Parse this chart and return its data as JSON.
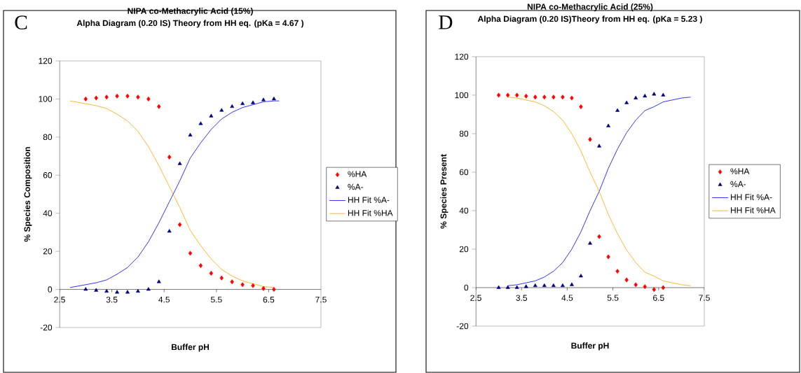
{
  "chart_data": [
    {
      "type": "scatter",
      "title": "NIPA co-Methacrylic Acid (15%)",
      "subtitle": "Alpha Diagram (0.20 IS) Theory from HH eq. (pKa = 4.67 )",
      "xlabel": "Buffer pH",
      "ylabel": "% Species Composition",
      "annotations": [
        "C"
      ],
      "xlim": [
        2.5,
        7.5
      ],
      "ylim": [
        -20,
        120
      ],
      "xticks": [
        2.5,
        3.5,
        4.5,
        5.5,
        6.5,
        7.5
      ],
      "yticks": [
        -20,
        0,
        20,
        40,
        60,
        80,
        100,
        120
      ],
      "legend": "right",
      "series": [
        {
          "name": "%HA",
          "type": "scatter",
          "marker": "diamond",
          "color": "#ff0000",
          "x": [
            3.0,
            3.2,
            3.4,
            3.6,
            3.8,
            4.0,
            4.2,
            4.4,
            4.6,
            4.8,
            5.0,
            5.2,
            5.4,
            5.6,
            5.8,
            6.0,
            6.2,
            6.4,
            6.6
          ],
          "values": [
            100,
            100.5,
            101,
            101.5,
            101.5,
            101,
            100,
            96,
            69.5,
            34,
            19,
            12.5,
            8.5,
            6,
            4,
            2.5,
            2,
            0.5,
            0
          ]
        },
        {
          "name": "%A-",
          "type": "scatter",
          "marker": "triangle",
          "color": "#000080",
          "x": [
            3.0,
            3.2,
            3.4,
            3.6,
            3.8,
            4.0,
            4.2,
            4.4,
            4.6,
            4.8,
            5.0,
            5.2,
            5.4,
            5.6,
            5.8,
            6.0,
            6.2,
            6.4,
            6.6
          ],
          "values": [
            0,
            -0.5,
            -1,
            -1.5,
            -1.5,
            -1,
            0,
            4,
            30.5,
            66,
            81,
            87,
            91,
            94,
            96,
            97.5,
            98,
            99.5,
            100
          ]
        },
        {
          "name": "HH Fit %A-",
          "type": "line",
          "color": "#0000ff",
          "x": [
            2.7,
            3.0,
            3.2,
            3.4,
            3.6,
            3.8,
            4.0,
            4.2,
            4.4,
            4.6,
            4.8,
            5.0,
            5.2,
            5.4,
            5.6,
            5.8,
            6.0,
            6.2,
            6.4,
            6.6,
            6.7
          ],
          "values": [
            1,
            2.5,
            3.5,
            5,
            8,
            11.5,
            17,
            25,
            35,
            46,
            57,
            69,
            77,
            84,
            89.5,
            93,
            95.5,
            97,
            98.5,
            99,
            99
          ]
        },
        {
          "name": "HH Fit %HA",
          "type": "line",
          "color": "#ffa500",
          "x": [
            2.7,
            3.0,
            3.2,
            3.4,
            3.6,
            3.8,
            4.0,
            4.2,
            4.4,
            4.6,
            4.8,
            5.0,
            5.2,
            5.4,
            5.6,
            5.8,
            6.0,
            6.2,
            6.4,
            6.6
          ],
          "values": [
            99,
            97.5,
            96.5,
            95,
            92,
            88.5,
            83,
            75,
            65,
            54,
            43,
            31,
            23,
            16,
            10.5,
            7,
            4.5,
            3,
            1.5,
            1
          ]
        }
      ]
    },
    {
      "type": "scatter",
      "title": "NIPA co-Methacrylic Acid (25%)",
      "subtitle": "Alpha Diagram (0.20 IS)Theory from HH eq. (pKa = 5.23 )",
      "xlabel": "Buffer pH",
      "ylabel": "% Species Present",
      "annotations": [
        "D"
      ],
      "xlim": [
        2.5,
        7.5
      ],
      "ylim": [
        -20,
        120
      ],
      "xticks": [
        2.5,
        3.5,
        4.5,
        5.5,
        6.5,
        7.5
      ],
      "yticks": [
        -20,
        0,
        20,
        40,
        60,
        80,
        100,
        120
      ],
      "legend": "right",
      "series": [
        {
          "name": "%HA",
          "type": "scatter",
          "marker": "diamond",
          "color": "#ff0000",
          "x": [
            3.0,
            3.2,
            3.4,
            3.6,
            3.8,
            4.0,
            4.2,
            4.4,
            4.6,
            4.8,
            5.0,
            5.2,
            5.4,
            5.6,
            5.8,
            6.0,
            6.2,
            6.4,
            6.6
          ],
          "values": [
            100,
            100,
            100,
            99.5,
            99,
            99,
            99,
            99,
            98.5,
            94,
            77,
            26.5,
            16,
            8.5,
            4,
            1.5,
            0.5,
            -1,
            0
          ]
        },
        {
          "name": "%A-",
          "type": "scatter",
          "marker": "triangle",
          "color": "#000080",
          "x": [
            3.0,
            3.2,
            3.4,
            3.6,
            3.8,
            4.0,
            4.2,
            4.4,
            4.6,
            4.8,
            5.0,
            5.2,
            5.4,
            5.6,
            5.8,
            6.0,
            6.2,
            6.4,
            6.6
          ],
          "values": [
            0,
            0,
            0,
            0.5,
            1,
            1,
            1,
            1,
            1.5,
            6,
            23,
            73.5,
            84,
            92,
            96,
            98.5,
            99.5,
            100.5,
            100
          ]
        },
        {
          "name": "HH Fit %A-",
          "type": "line",
          "color": "#0000ff",
          "x": [
            3.2,
            3.4,
            3.6,
            3.8,
            4.0,
            4.2,
            4.4,
            4.6,
            4.8,
            5.0,
            5.2,
            5.4,
            5.6,
            5.8,
            6.0,
            6.2,
            6.4,
            6.6,
            6.8,
            7.0,
            7.2
          ],
          "values": [
            1,
            1.5,
            2.5,
            3.5,
            5.5,
            8.5,
            13,
            20,
            29,
            40,
            50,
            62,
            72,
            80.5,
            87,
            92,
            94,
            96.5,
            97.5,
            98.5,
            99
          ]
        },
        {
          "name": "HH Fit %HA",
          "type": "line",
          "color": "#ffa500",
          "x": [
            3.2,
            3.4,
            3.6,
            3.8,
            4.0,
            4.2,
            4.4,
            4.6,
            4.8,
            5.0,
            5.2,
            5.4,
            5.6,
            5.8,
            6.0,
            6.2,
            6.4,
            6.6,
            6.8,
            7.0,
            7.2
          ],
          "values": [
            99,
            98.5,
            97.5,
            96.5,
            94.5,
            91.5,
            87,
            80,
            71,
            60,
            50,
            38,
            28,
            19.5,
            13,
            8,
            6,
            3.5,
            2.5,
            1.5,
            1
          ]
        }
      ]
    }
  ]
}
